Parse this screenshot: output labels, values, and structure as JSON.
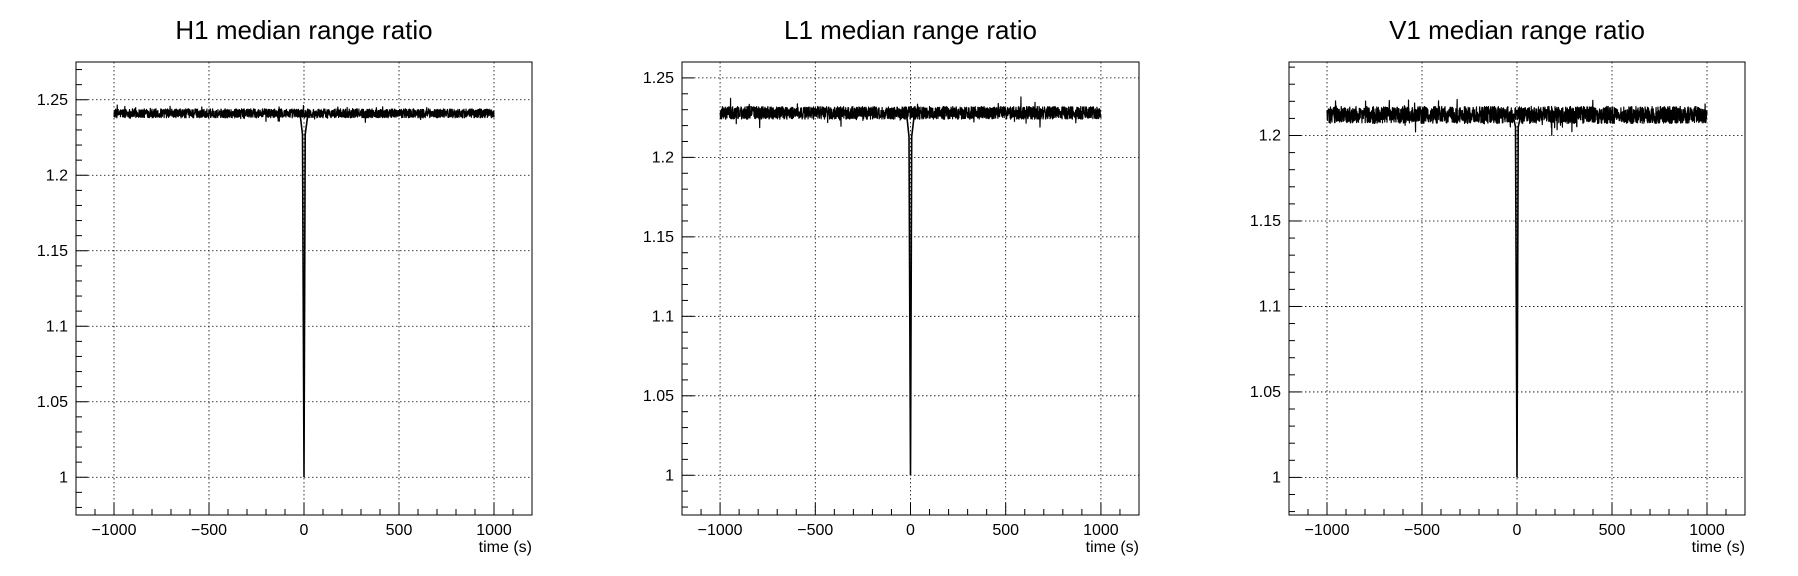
{
  "chart_data": [
    {
      "type": "line",
      "title": "H1 median range ratio",
      "xlabel": "time (s)",
      "ylabel": "",
      "xlim": [
        -1200,
        1200
      ],
      "ylim": [
        0.975,
        1.275
      ],
      "x_ticks": [
        -1000,
        -500,
        0,
        500,
        1000
      ],
      "x_tick_labels": [
        "−1000",
        "−500",
        "0",
        "500",
        "1000"
      ],
      "y_ticks": [
        1,
        1.05,
        1.1,
        1.15,
        1.2,
        1.25
      ],
      "y_tick_labels": [
        "1",
        "1.05",
        "1.1",
        "1.15",
        "1.2",
        "1.25"
      ],
      "grid": true,
      "series": [
        {
          "baseline": 1.241,
          "noise_amplitude": 0.003,
          "x_range": [
            -1000,
            1000
          ],
          "dip_time": 0,
          "dip_min": 1.0,
          "dip_near": 1.227
        }
      ]
    },
    {
      "type": "line",
      "title": "L1 median range ratio",
      "xlabel": "time (s)",
      "ylabel": "",
      "xlim": [
        -1200,
        1200
      ],
      "ylim": [
        0.975,
        1.26
      ],
      "x_ticks": [
        -1000,
        -500,
        0,
        500,
        1000
      ],
      "x_tick_labels": [
        "−1000",
        "−500",
        "0",
        "500",
        "1000"
      ],
      "y_ticks": [
        1,
        1.05,
        1.1,
        1.15,
        1.2,
        1.25
      ],
      "y_tick_labels": [
        "1",
        "1.05",
        "1.1",
        "1.15",
        "1.2",
        "1.25"
      ],
      "grid": true,
      "series": [
        {
          "baseline": 1.228,
          "noise_amplitude": 0.004,
          "x_range": [
            -1000,
            1000
          ],
          "dip_time": 0,
          "dip_min": 1.0,
          "dip_near": 1.213
        }
      ]
    },
    {
      "type": "line",
      "title": "V1 median range ratio",
      "xlabel": "time (s)",
      "ylabel": "",
      "xlim": [
        -1200,
        1200
      ],
      "ylim": [
        0.978,
        1.243
      ],
      "x_ticks": [
        -1000,
        -500,
        0,
        500,
        1000
      ],
      "x_tick_labels": [
        "−1000",
        "−500",
        "0",
        "500",
        "1000"
      ],
      "y_ticks": [
        1,
        1.05,
        1.1,
        1.15,
        1.2
      ],
      "y_tick_labels": [
        "1",
        "1.05",
        "1.1",
        "1.15",
        "1.2"
      ],
      "grid": true,
      "series": [
        {
          "baseline": 1.212,
          "noise_amplitude": 0.005,
          "x_range": [
            -1000,
            1000
          ],
          "dip_time": 0,
          "dip_min": 1.0,
          "dip_near": 1.205
        }
      ]
    }
  ],
  "colors": {
    "line": "#000000",
    "grid": "#000000",
    "background": "#ffffff"
  }
}
